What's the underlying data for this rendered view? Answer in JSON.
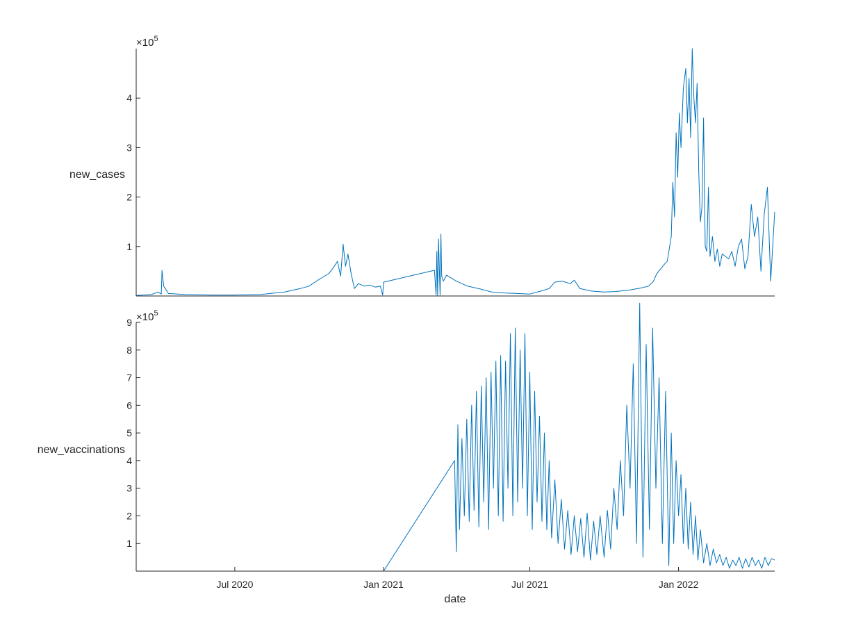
{
  "chart_data": [
    {
      "type": "line",
      "ylabel": "new_cases",
      "exponent_label": "×10",
      "exponent_power": "5",
      "ylim": [
        0,
        500000
      ],
      "yticks": [
        100000,
        200000,
        300000,
        400000
      ],
      "ytick_labels": [
        "1",
        "2",
        "3",
        "4"
      ],
      "xlim": [
        "2020-03-01",
        "2022-04-30"
      ],
      "color": "#0072BD",
      "series": [
        {
          "x": [
            "2020-03-01",
            "2020-03-20",
            "2020-03-28",
            "2020-04-01",
            "2020-04-02",
            "2020-04-04",
            "2020-04-10",
            "2020-05-01",
            "2020-06-01",
            "2020-07-01",
            "2020-08-01",
            "2020-09-01",
            "2020-09-20",
            "2020-10-01",
            "2020-10-10",
            "2020-10-20",
            "2020-10-25",
            "2020-10-30",
            "2020-11-05",
            "2020-11-09",
            "2020-11-12",
            "2020-11-15",
            "2020-11-18",
            "2020-11-22",
            "2020-11-26",
            "2020-12-01",
            "2020-12-08",
            "2020-12-15",
            "2020-12-22",
            "2020-12-28",
            "2020-12-31",
            "2021-01-01",
            "2021-03-05",
            "2021-03-07",
            "2021-03-08",
            "2021-03-09",
            "2021-03-10",
            "2021-03-12",
            "2021-03-13",
            "2021-03-14",
            "2021-03-16",
            "2021-03-20",
            "2021-04-01",
            "2021-04-15",
            "2021-05-01",
            "2021-05-15",
            "2021-06-01",
            "2021-06-15",
            "2021-07-01",
            "2021-07-15",
            "2021-07-25",
            "2021-08-01",
            "2021-08-10",
            "2021-08-20",
            "2021-08-25",
            "2021-09-01",
            "2021-09-15",
            "2021-10-01",
            "2021-10-15",
            "2021-11-01",
            "2021-11-15",
            "2021-11-25",
            "2021-12-01",
            "2021-12-05",
            "2021-12-10",
            "2021-12-15",
            "2021-12-18",
            "2021-12-21",
            "2021-12-23",
            "2021-12-25",
            "2021-12-27",
            "2021-12-29",
            "2021-12-31",
            "2022-01-02",
            "2022-01-04",
            "2022-01-07",
            "2022-01-10",
            "2022-01-12",
            "2022-01-14",
            "2022-01-16",
            "2022-01-18",
            "2022-01-20",
            "2022-01-22",
            "2022-01-24",
            "2022-01-26",
            "2022-01-28",
            "2022-01-30",
            "2022-02-01",
            "2022-02-03",
            "2022-02-05",
            "2022-02-07",
            "2022-02-09",
            "2022-02-12",
            "2022-02-15",
            "2022-02-18",
            "2022-02-21",
            "2022-02-24",
            "2022-02-28",
            "2022-03-04",
            "2022-03-08",
            "2022-03-12",
            "2022-03-16",
            "2022-03-20",
            "2022-03-24",
            "2022-03-28",
            "2022-04-01",
            "2022-04-05",
            "2022-04-09",
            "2022-04-13",
            "2022-04-17",
            "2022-04-21",
            "2022-04-25",
            "2022-04-30"
          ],
          "y": [
            1000,
            3000,
            8000,
            4000,
            52000,
            20000,
            5000,
            3000,
            2000,
            2000,
            3000,
            8000,
            15000,
            20000,
            30000,
            40000,
            45000,
            55000,
            70000,
            40000,
            105000,
            60000,
            85000,
            45000,
            15000,
            25000,
            20000,
            22000,
            18000,
            20000,
            2000,
            28000,
            52000,
            2000,
            90000,
            1000,
            115000,
            2000,
            125000,
            40000,
            30000,
            42000,
            30000,
            20000,
            14000,
            8000,
            6000,
            5000,
            4000,
            10000,
            15000,
            28000,
            30000,
            25000,
            32000,
            15000,
            10000,
            8000,
            9000,
            12000,
            16000,
            20000,
            30000,
            45000,
            55000,
            65000,
            70000,
            100000,
            120000,
            230000,
            160000,
            330000,
            240000,
            370000,
            300000,
            420000,
            460000,
            350000,
            440000,
            320000,
            500000,
            400000,
            350000,
            430000,
            250000,
            150000,
            180000,
            360000,
            100000,
            90000,
            220000,
            80000,
            120000,
            70000,
            95000,
            60000,
            85000,
            80000,
            75000,
            90000,
            60000,
            100000,
            115000,
            55000,
            80000,
            185000,
            120000,
            160000,
            50000,
            165000,
            220000,
            30000,
            170000
          ]
        }
      ]
    },
    {
      "type": "line",
      "ylabel": "new_vaccinations",
      "xlabel": "date",
      "exponent_label": "×10",
      "exponent_power": "5",
      "ylim": [
        0,
        900000
      ],
      "yticks": [
        100000,
        200000,
        300000,
        400000,
        500000,
        600000,
        700000,
        800000,
        900000
      ],
      "ytick_labels": [
        "1",
        "2",
        "3",
        "4",
        "5",
        "6",
        "7",
        "8",
        "9"
      ],
      "xlim": [
        "2020-03-01",
        "2022-04-30"
      ],
      "xticks": [
        "2020-07-01",
        "2021-01-01",
        "2021-07-01",
        "2022-01-01"
      ],
      "xtick_labels": [
        "Jul 2020",
        "Jan 2021",
        "Jul 2021",
        "Jan 2022"
      ],
      "color": "#0072BD",
      "series": [
        {
          "x": [
            "2021-01-01",
            "2021-03-30",
            "2021-04-01",
            "2021-04-03",
            "2021-04-05",
            "2021-04-08",
            "2021-04-11",
            "2021-04-14",
            "2021-04-17",
            "2021-04-20",
            "2021-04-23",
            "2021-04-26",
            "2021-04-29",
            "2021-05-02",
            "2021-05-05",
            "2021-05-08",
            "2021-05-11",
            "2021-05-14",
            "2021-05-17",
            "2021-05-20",
            "2021-05-23",
            "2021-05-26",
            "2021-05-29",
            "2021-06-01",
            "2021-06-04",
            "2021-06-07",
            "2021-06-10",
            "2021-06-13",
            "2021-06-16",
            "2021-06-19",
            "2021-06-22",
            "2021-06-25",
            "2021-06-28",
            "2021-07-01",
            "2021-07-04",
            "2021-07-07",
            "2021-07-10",
            "2021-07-13",
            "2021-07-16",
            "2021-07-19",
            "2021-07-22",
            "2021-07-25",
            "2021-07-28",
            "2021-08-01",
            "2021-08-05",
            "2021-08-09",
            "2021-08-13",
            "2021-08-17",
            "2021-08-21",
            "2021-08-25",
            "2021-08-29",
            "2021-09-02",
            "2021-09-06",
            "2021-09-10",
            "2021-09-14",
            "2021-09-18",
            "2021-09-22",
            "2021-09-26",
            "2021-10-01",
            "2021-10-05",
            "2021-10-09",
            "2021-10-13",
            "2021-10-17",
            "2021-10-21",
            "2021-10-25",
            "2021-10-29",
            "2021-11-02",
            "2021-11-06",
            "2021-11-10",
            "2021-11-14",
            "2021-11-18",
            "2021-11-22",
            "2021-11-26",
            "2021-11-30",
            "2021-12-04",
            "2021-12-08",
            "2021-12-12",
            "2021-12-16",
            "2021-12-20",
            "2021-12-23",
            "2021-12-26",
            "2021-12-29",
            "2022-01-01",
            "2022-01-04",
            "2022-01-07",
            "2022-01-10",
            "2022-01-13",
            "2022-01-16",
            "2022-01-19",
            "2022-01-22",
            "2022-01-25",
            "2022-01-28",
            "2022-02-01",
            "2022-02-05",
            "2022-02-09",
            "2022-02-13",
            "2022-02-17",
            "2022-02-21",
            "2022-02-25",
            "2022-03-01",
            "2022-03-05",
            "2022-03-09",
            "2022-03-13",
            "2022-03-17",
            "2022-03-21",
            "2022-03-25",
            "2022-03-29",
            "2022-04-02",
            "2022-04-06",
            "2022-04-10",
            "2022-04-14",
            "2022-04-18",
            "2022-04-22",
            "2022-04-26",
            "2022-04-30"
          ],
          "y": [
            0,
            400000,
            70000,
            530000,
            150000,
            480000,
            200000,
            550000,
            180000,
            600000,
            220000,
            650000,
            160000,
            670000,
            250000,
            700000,
            150000,
            720000,
            300000,
            760000,
            200000,
            780000,
            180000,
            760000,
            300000,
            860000,
            200000,
            880000,
            250000,
            800000,
            300000,
            860000,
            200000,
            720000,
            150000,
            650000,
            250000,
            560000,
            180000,
            500000,
            150000,
            400000,
            120000,
            330000,
            100000,
            260000,
            80000,
            220000,
            60000,
            200000,
            70000,
            190000,
            50000,
            210000,
            40000,
            180000,
            60000,
            200000,
            50000,
            220000,
            80000,
            300000,
            150000,
            400000,
            200000,
            600000,
            300000,
            750000,
            100000,
            970000,
            50000,
            820000,
            150000,
            880000,
            300000,
            700000,
            100000,
            650000,
            20000,
            500000,
            100000,
            400000,
            200000,
            350000,
            100000,
            300000,
            80000,
            250000,
            60000,
            200000,
            40000,
            150000,
            30000,
            100000,
            20000,
            80000,
            30000,
            60000,
            20000,
            50000,
            10000,
            40000,
            20000,
            50000,
            10000,
            45000,
            15000,
            50000,
            20000,
            40000,
            10000,
            50000,
            20000,
            45000,
            40000
          ]
        }
      ]
    }
  ]
}
